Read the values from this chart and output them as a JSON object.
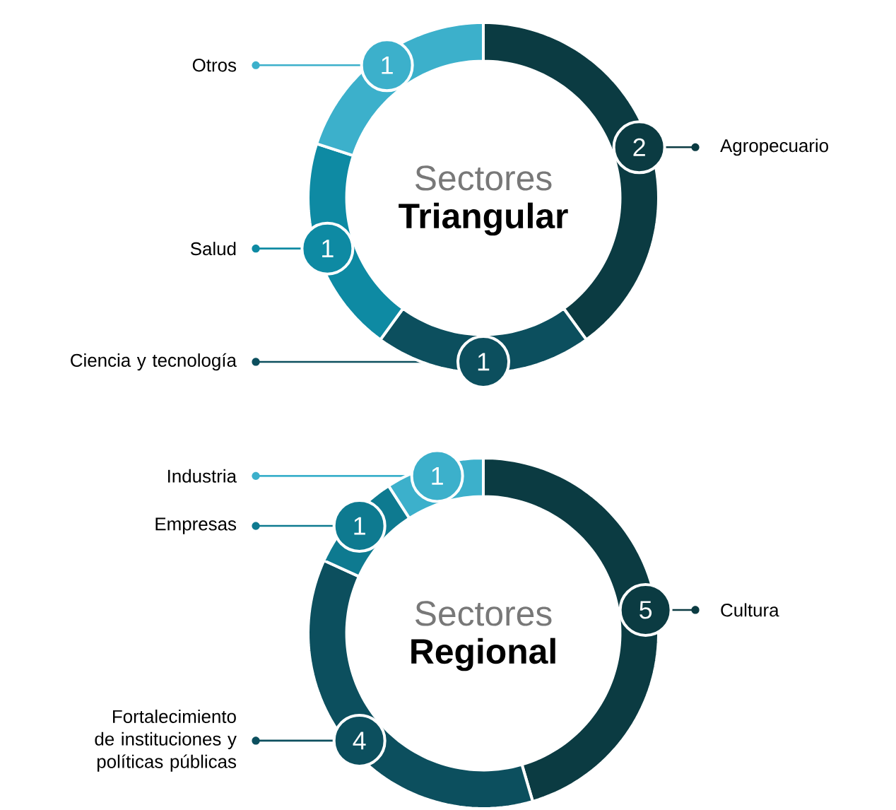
{
  "chart_data": [
    {
      "type": "donut",
      "title": "Sectores",
      "subtitle": "Triangular",
      "categories": [
        "Agropecuario",
        "Ciencia y tecnología",
        "Salud",
        "Otros"
      ],
      "values": [
        2,
        1,
        1,
        1
      ],
      "colors": [
        "#0b3b42",
        "#0c4f5e",
        "#0e8aa3",
        "#3cb0cb"
      ],
      "data_labels": true,
      "legend": "left"
    },
    {
      "type": "donut",
      "title": "Sectores",
      "subtitle": "Regional",
      "categories": [
        "Cultura",
        "Fortalecimiento de instituciones y políticas públicas",
        "Empresas",
        "Industria"
      ],
      "values": [
        5,
        4,
        1,
        1
      ],
      "colors": [
        "#0b3b42",
        "#0c4f5e",
        "#0e7a90",
        "#3cb0cb"
      ],
      "data_labels": true,
      "legend": "left"
    }
  ]
}
